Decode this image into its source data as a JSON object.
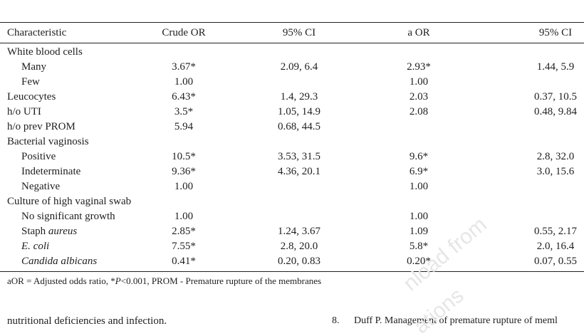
{
  "table": {
    "header": [
      "Characteristic",
      "Crude OR",
      "95% CI",
      "a OR",
      "95% CI"
    ],
    "rows": [
      {
        "label": "White blood cells",
        "sub": [
          {
            "label": "Many",
            "crude_or": "3.67*",
            "ci_crude": "2.09, 6.4",
            "aor": "2.93*",
            "ci_adj": "1.44, 5.9"
          },
          {
            "label": "Few",
            "crude_or": "1.00",
            "aor": "1.00"
          }
        ]
      },
      {
        "label": "Leucocytes",
        "crude_or": "6.43*",
        "ci_crude": "1.4, 29.3",
        "aor": "2.03",
        "ci_adj": "0.37, 10.5"
      },
      {
        "label": "h/o UTI",
        "crude_or": "3.5*",
        "ci_crude": "1.05, 14.9",
        "aor": "2.08",
        "ci_adj": "0.48, 9.84"
      },
      {
        "label": "h/o prev PROM",
        "crude_or": "5.94",
        "ci_crude": "0.68, 44.5"
      },
      {
        "label": "Bacterial vaginosis",
        "sub": [
          {
            "label": "Positive",
            "crude_or": "10.5*",
            "ci_crude": "3.53, 31.5",
            "aor": "9.6*",
            "ci_adj": "2.8, 32.0"
          },
          {
            "label": "Indeterminate",
            "crude_or": "9.36*",
            "ci_crude": "4.36, 20.1",
            "aor": "6.9*",
            "ci_adj": "3.0, 15.6"
          },
          {
            "label": "Negative",
            "crude_or": "1.00",
            "aor": "1.00"
          }
        ]
      },
      {
        "label": "Culture of high vaginal swab",
        "sub": [
          {
            "label": "No significant growth",
            "crude_or": "1.00",
            "aor": "1.00"
          },
          {
            "label": "Staph",
            "label_italic": "aureus",
            "crude_or": "2.85*",
            "ci_crude": "1.24, 3.67",
            "aor": "1.09",
            "ci_adj": "0.55, 2.17"
          },
          {
            "label_italic": "E. coli",
            "crude_or": "7.55*",
            "ci_crude": "2.8, 20.0",
            "aor": "5.8*",
            "ci_adj": "2.0, 16.4"
          },
          {
            "label_italic": "Candida albicans",
            "crude_or": "0.41*",
            "ci_crude": "0.20, 0.83",
            "aor": "0.20*",
            "ci_adj": "0.07, 0.55"
          }
        ]
      }
    ],
    "footnote": [
      "aOR = Adjusted odds ratio, *",
      "P",
      "<0.001, PROM - Premature rupture of the membranes"
    ]
  },
  "body_text": "nutritional deficiencies and infection.",
  "reference": {
    "number": "8.",
    "text": "Duff P. Management of premature rupture of meml"
  },
  "watermark": [
    "nload from",
    "ations"
  ]
}
